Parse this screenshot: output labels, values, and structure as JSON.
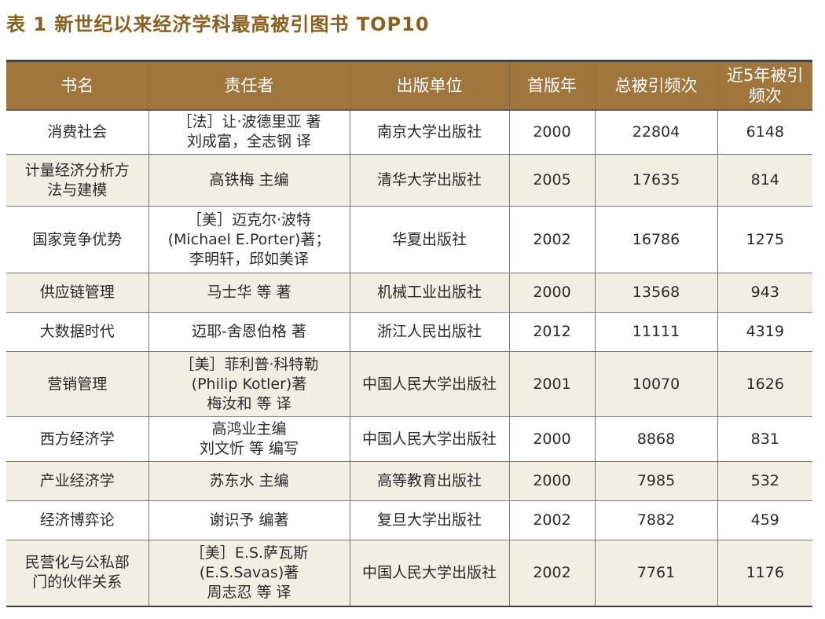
{
  "title": "表 1  新世纪以来经济学科最高被引图书 TOP10",
  "columns": {
    "name": "书名",
    "author": "责任者",
    "publisher": "出版单位",
    "year": "首版年",
    "total": "总被引频次",
    "recent_1": "近5年被引",
    "recent_2": "频次"
  },
  "rows": [
    {
      "name": [
        "消费社会"
      ],
      "author": [
        "［法］让·波德里亚 著",
        "刘成富，全志钢 译"
      ],
      "publisher": "南京大学出版社",
      "year": "2000",
      "total": "22804",
      "recent": "6148"
    },
    {
      "name": [
        "计量经济分析方",
        "法与建模"
      ],
      "author": [
        "高铁梅 主编"
      ],
      "publisher": "清华大学出版社",
      "year": "2005",
      "total": "17635",
      "recent": "814"
    },
    {
      "name": [
        "国家竞争优势"
      ],
      "author": [
        "［美］迈克尔·波特",
        "(Michael E.Porter)著；",
        "李明轩，邱如美译"
      ],
      "publisher": "华夏出版社",
      "year": "2002",
      "total": "16786",
      "recent": "1275"
    },
    {
      "name": [
        "供应链管理"
      ],
      "author": [
        "马士华 等 著"
      ],
      "publisher": "机械工业出版社",
      "year": "2000",
      "total": "13568",
      "recent": "943"
    },
    {
      "name": [
        "大数据时代"
      ],
      "author": [
        "迈耶-舍恩伯格 著"
      ],
      "publisher": "浙江人民出版社",
      "year": "2012",
      "total": "11111",
      "recent": "4319"
    },
    {
      "name": [
        "营销管理"
      ],
      "author": [
        "［美］菲利普·科特勒",
        "(Philip Kotler)著",
        "梅汝和 等 译"
      ],
      "publisher": "中国人民大学出版社",
      "year": "2001",
      "total": "10070",
      "recent": "1626"
    },
    {
      "name": [
        "西方经济学"
      ],
      "author": [
        "高鸿业主编",
        "刘文忻 等 编写"
      ],
      "publisher": "中国人民大学出版社",
      "year": "2000",
      "total": "8868",
      "recent": "831"
    },
    {
      "name": [
        "产业经济学"
      ],
      "author": [
        "苏东水 主编"
      ],
      "publisher": "高等教育出版社",
      "year": "2000",
      "total": "7985",
      "recent": "532"
    },
    {
      "name": [
        "经济博弈论"
      ],
      "author": [
        "谢识予 编著"
      ],
      "publisher": "复旦大学出版社",
      "year": "2002",
      "total": "7882",
      "recent": "459"
    },
    {
      "name": [
        "民营化与公私部",
        "门的伙伴关系"
      ],
      "author": [
        "［美］E.S.萨瓦斯",
        "(E.S.Savas)著",
        "周志忍 等 译"
      ],
      "publisher": "中国人民大学出版社",
      "year": "2002",
      "total": "7761",
      "recent": "1176"
    }
  ]
}
